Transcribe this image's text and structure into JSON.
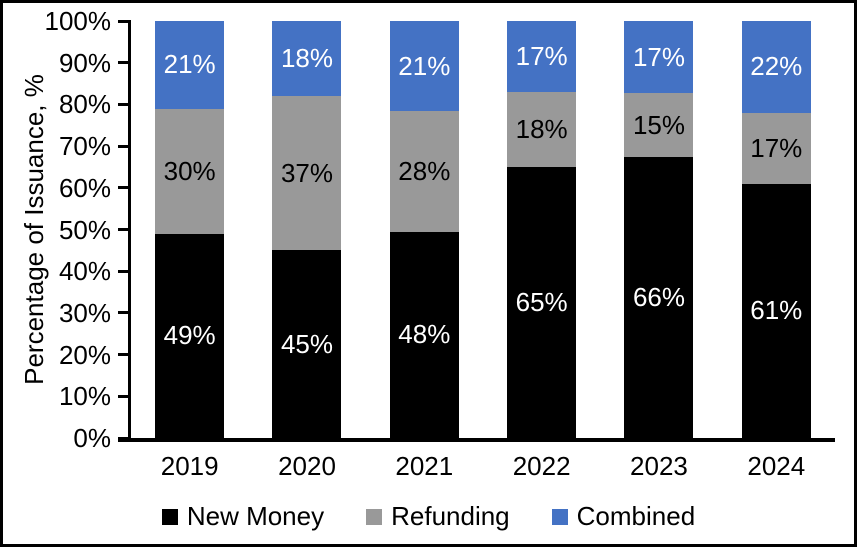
{
  "chart_data": {
    "type": "bar",
    "stacked": true,
    "title": "",
    "xlabel": "",
    "ylabel": "Percentage of Issuance, %",
    "ylim": [
      0,
      100
    ],
    "ytick_step": 10,
    "grid": false,
    "legend_position": "bottom",
    "value_suffix": "%",
    "categories": [
      "2019",
      "2020",
      "2021",
      "2022",
      "2023",
      "2024"
    ],
    "ytick_labels": [
      "0%",
      "10%",
      "20%",
      "30%",
      "40%",
      "50%",
      "60%",
      "70%",
      "80%",
      "90%",
      "100%"
    ],
    "series": [
      {
        "name": "New Money",
        "color": "#000000",
        "label_color": "#FFFFFF",
        "values": [
          49,
          45,
          48,
          65,
          66,
          61
        ]
      },
      {
        "name": "Refunding",
        "color": "#999999",
        "label_color": "#000000",
        "values": [
          30,
          37,
          28,
          18,
          15,
          17
        ]
      },
      {
        "name": "Combined",
        "color": "#4472C4",
        "label_color": "#FFFFFF",
        "values": [
          21,
          18,
          21,
          17,
          17,
          22
        ]
      }
    ],
    "colors": {
      "background": "#FFFFFF",
      "border": "#000000",
      "axis": "#000000"
    }
  }
}
